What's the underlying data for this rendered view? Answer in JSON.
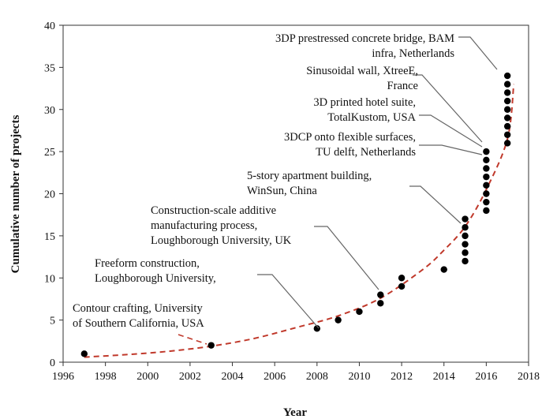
{
  "chart_data": {
    "type": "scatter",
    "xlabel": "Year",
    "ylabel": "Cumulative number of projects",
    "xlim": [
      1996,
      2018
    ],
    "ylim": [
      0,
      40
    ],
    "xticks": [
      1996,
      1998,
      2000,
      2002,
      2004,
      2006,
      2008,
      2010,
      2012,
      2014,
      2016,
      2018
    ],
    "yticks": [
      0,
      5,
      10,
      15,
      20,
      25,
      30,
      35,
      40
    ],
    "grid": false,
    "points": [
      {
        "x": 1997,
        "y": 1
      },
      {
        "x": 2003,
        "y": 2
      },
      {
        "x": 2008,
        "y": 4
      },
      {
        "x": 2009,
        "y": 5
      },
      {
        "x": 2010,
        "y": 6
      },
      {
        "x": 2011,
        "y": 7
      },
      {
        "x": 2011,
        "y": 8
      },
      {
        "x": 2012,
        "y": 9
      },
      {
        "x": 2012,
        "y": 10
      },
      {
        "x": 2014,
        "y": 11
      },
      {
        "x": 2015,
        "y": 12
      },
      {
        "x": 2015,
        "y": 13
      },
      {
        "x": 2015,
        "y": 14
      },
      {
        "x": 2015,
        "y": 15
      },
      {
        "x": 2015,
        "y": 16
      },
      {
        "x": 2015,
        "y": 17
      },
      {
        "x": 2016,
        "y": 18
      },
      {
        "x": 2016,
        "y": 19
      },
      {
        "x": 2016,
        "y": 20
      },
      {
        "x": 2016,
        "y": 21
      },
      {
        "x": 2016,
        "y": 22
      },
      {
        "x": 2016,
        "y": 23
      },
      {
        "x": 2016,
        "y": 24
      },
      {
        "x": 2016,
        "y": 25
      },
      {
        "x": 2017,
        "y": 26
      },
      {
        "x": 2017,
        "y": 27
      },
      {
        "x": 2017,
        "y": 28
      },
      {
        "x": 2017,
        "y": 29
      },
      {
        "x": 2017,
        "y": 30
      },
      {
        "x": 2017,
        "y": 31
      },
      {
        "x": 2017,
        "y": 32
      },
      {
        "x": 2017,
        "y": 33
      },
      {
        "x": 2017,
        "y": 34
      }
    ],
    "trendline": {
      "style": "dashed",
      "color": "#c0392b",
      "x": [
        1997,
        1999,
        2001,
        2003,
        2005,
        2007,
        2009,
        2011,
        2013,
        2014,
        2015,
        2016,
        2017,
        2017.3
      ],
      "y": [
        0.6,
        0.9,
        1.3,
        1.9,
        2.8,
        4.1,
        5.5,
        7.6,
        11.0,
        13.3,
        16.1,
        20.5,
        26.5,
        33.0
      ]
    },
    "annotations": [
      {
        "lines": [
          "Contour crafting, University",
          "of Southern California, USA"
        ],
        "point": {
          "x": 2003,
          "y": 2
        }
      },
      {
        "lines": [
          "Freeform construction,",
          "Loughborough University,"
        ],
        "point": {
          "x": 2008,
          "y": 4
        }
      },
      {
        "lines": [
          "Construction-scale additive",
          "manufacturing process,",
          "Loughborough University, UK"
        ],
        "point": {
          "x": 2011,
          "y": 8
        }
      },
      {
        "lines": [
          "5-story apartment building,",
          "WinSun, China"
        ],
        "point": {
          "x": 2015,
          "y": 17
        }
      },
      {
        "lines": [
          "3DCP onto flexible surfaces,",
          "TU delft, Netherlands"
        ],
        "point": {
          "x": 2016,
          "y": 25
        }
      },
      {
        "lines": [
          "3D printed hotel suite,",
          "TotalKustom, USA"
        ],
        "point": {
          "x": 2016,
          "y": 25
        }
      },
      {
        "lines": [
          "Sinusoidal wall, XtreeE,",
          "France"
        ],
        "point": {
          "x": 2016,
          "y": 25
        }
      },
      {
        "lines": [
          "3DP prestressed concrete bridge, BAM",
          "infra, Netherlands"
        ],
        "point": {
          "x": 2017,
          "y": 34
        }
      }
    ]
  }
}
